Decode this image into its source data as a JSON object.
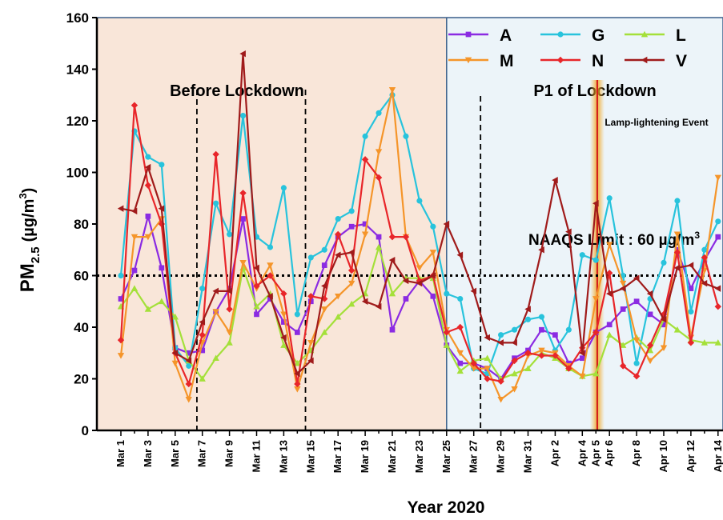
{
  "chart_data": {
    "type": "line",
    "xlabel": "Year 2020",
    "ylabel_main": "PM",
    "ylabel_sub": "2.5",
    "ylabel_unit": "(µg/m",
    "ylabel_sup": "3",
    "ylabel_close": ")",
    "ylim": [
      0,
      160
    ],
    "yticks": [
      "0",
      "20",
      "40",
      "60",
      "80",
      "100",
      "120",
      "140",
      "160"
    ],
    "grid": false,
    "legend_position": "top-right",
    "x_count": 45,
    "x_ticks": [
      {
        "i": 0,
        "label": "Mar 1"
      },
      {
        "i": 2,
        "label": "Mar 3"
      },
      {
        "i": 4,
        "label": "Mar 5"
      },
      {
        "i": 6,
        "label": "Mar 7"
      },
      {
        "i": 8,
        "label": "Mar 9"
      },
      {
        "i": 10,
        "label": "Mar 11"
      },
      {
        "i": 12,
        "label": "Mar 13"
      },
      {
        "i": 14,
        "label": "Mar 15"
      },
      {
        "i": 16,
        "label": "Mar 17"
      },
      {
        "i": 18,
        "label": "Mar 19"
      },
      {
        "i": 20,
        "label": "Mar 21"
      },
      {
        "i": 22,
        "label": "Mar 23"
      },
      {
        "i": 24,
        "label": "Mar 25"
      },
      {
        "i": 26,
        "label": "Mar 27"
      },
      {
        "i": 28,
        "label": "Mar 29"
      },
      {
        "i": 30,
        "label": "Mar 31"
      },
      {
        "i": 32,
        "label": "Apr 2"
      },
      {
        "i": 34,
        "label": "Apr 4"
      },
      {
        "i": 35,
        "label": "Apr 5"
      },
      {
        "i": 36,
        "label": "Apr 6"
      },
      {
        "i": 38,
        "label": "Apr 8"
      },
      {
        "i": 40,
        "label": "Apr 10"
      },
      {
        "i": 42,
        "label": "Apr 12"
      },
      {
        "i": 44,
        "label": "Apr 14"
      }
    ],
    "regions": [
      {
        "name": "Before Lockdown",
        "from": -1,
        "to": 24,
        "color": "#f9e6d9"
      },
      {
        "name": "P1 of Lockdown",
        "from": 24,
        "to": 44.3,
        "color": "#ecf4f9"
      }
    ],
    "dashed_lines_x": [
      5.6,
      13.6,
      26.5
    ],
    "naaqs": {
      "value": 60,
      "label": "NAAQS Limit : 60 µg/m",
      "sup": "3"
    },
    "event": {
      "x": 35.1,
      "label": "Lamp-lightening Event"
    },
    "series": [
      {
        "name": "A",
        "color": "#8b2be2",
        "marker": "square",
        "values": [
          51,
          62,
          83,
          63,
          32,
          30,
          31,
          46,
          55,
          82,
          45,
          51,
          42,
          38,
          50,
          64,
          75,
          79,
          80,
          75,
          39,
          51,
          58,
          52,
          33,
          26,
          26,
          24,
          20,
          28,
          31,
          39,
          37,
          26,
          28,
          38,
          41,
          47,
          50,
          45,
          41,
          70,
          55,
          66,
          75
        ]
      },
      {
        "name": "G",
        "color": "#28c3dc",
        "marker": "circle",
        "values": [
          60,
          116,
          106,
          103,
          32,
          25,
          55,
          88,
          76,
          122,
          75,
          71,
          94,
          45,
          67,
          70,
          82,
          85,
          114,
          123,
          130,
          114,
          89,
          79,
          53,
          51,
          24,
          22,
          37,
          39,
          43,
          44,
          31,
          39,
          68,
          66,
          90,
          60,
          26,
          51,
          65,
          89,
          46,
          70,
          81
        ]
      },
      {
        "name": "L",
        "color": "#a4e03a",
        "marker": "triangle",
        "values": [
          48,
          55,
          47,
          50,
          44,
          27,
          20,
          28,
          34,
          63,
          48,
          53,
          33,
          26,
          31,
          38,
          44,
          49,
          53,
          71,
          53,
          59,
          59,
          59,
          33,
          23,
          27,
          28,
          20,
          22,
          24,
          30,
          28,
          24,
          21,
          22,
          37,
          33,
          36,
          31,
          43,
          39,
          35,
          34,
          34
        ]
      },
      {
        "name": "M",
        "color": "#f5952a",
        "marker": "triangle-down",
        "values": [
          29,
          75,
          75,
          82,
          26,
          12,
          34,
          46,
          38,
          65,
          55,
          64,
          45,
          16,
          34,
          47,
          52,
          57,
          76,
          108,
          132,
          75,
          63,
          69,
          39,
          30,
          24,
          24,
          12,
          16,
          29,
          31,
          30,
          25,
          21,
          51,
          72,
          57,
          35,
          27,
          32,
          76,
          36,
          62,
          98
        ]
      },
      {
        "name": "N",
        "color": "#e8262a",
        "marker": "diamond",
        "values": [
          35,
          126,
          95,
          80,
          30,
          18,
          37,
          107,
          47,
          92,
          56,
          60,
          53,
          18,
          52,
          51,
          76,
          62,
          105,
          98,
          75,
          75,
          58,
          60,
          38,
          40,
          26,
          20,
          19,
          27,
          30,
          29,
          29,
          24,
          32,
          38,
          61,
          25,
          21,
          33,
          45,
          69,
          34,
          67,
          48
        ]
      },
      {
        "name": "V",
        "color": "#a01b1b",
        "marker": "triangle-left",
        "values": [
          86,
          85,
          102,
          86,
          30,
          27,
          42,
          54,
          54,
          146,
          63,
          52,
          36,
          22,
          27,
          56,
          68,
          69,
          50,
          48,
          66,
          58,
          57,
          60,
          80,
          68,
          54,
          36,
          34,
          34,
          47,
          70,
          97,
          77,
          30,
          88,
          53,
          55,
          59,
          53,
          43,
          63,
          64,
          57,
          55
        ]
      }
    ]
  }
}
